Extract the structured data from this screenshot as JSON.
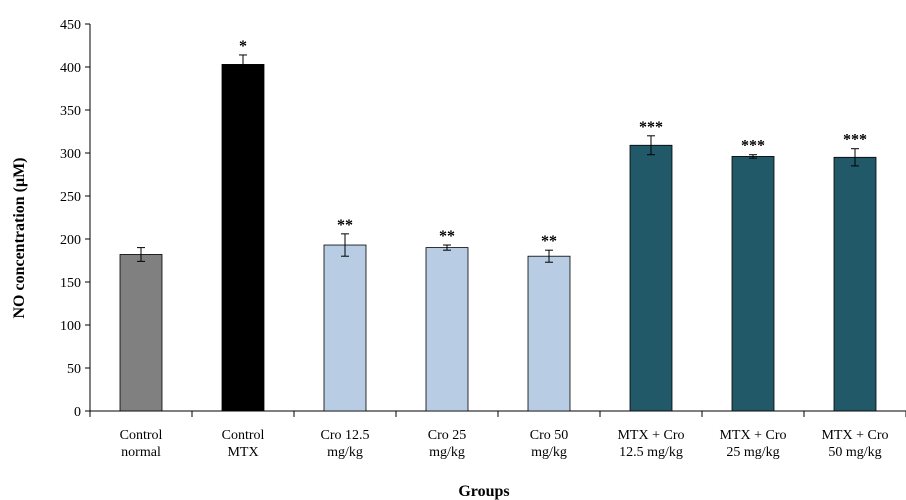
{
  "chart_data": {
    "type": "bar",
    "title": "",
    "xlabel": "Groups",
    "ylabel": "NO concentration (μM)",
    "ylim": [
      0,
      450
    ],
    "yticks": [
      0,
      50,
      100,
      150,
      200,
      250,
      300,
      350,
      400,
      450
    ],
    "grid": false,
    "legend": "none",
    "categories": [
      [
        "Control",
        "normal"
      ],
      [
        "Control",
        "MTX"
      ],
      [
        "Cro 12.5",
        "mg/kg"
      ],
      [
        "Cro 25",
        "mg/kg"
      ],
      [
        "Cro 50",
        "mg/kg"
      ],
      [
        "MTX + Cro",
        "12.5 mg/kg"
      ],
      [
        "MTX + Cro",
        "25 mg/kg"
      ],
      [
        "MTX + Cro",
        "50 mg/kg"
      ]
    ],
    "values": [
      182,
      403,
      193,
      190,
      180,
      309,
      296,
      295
    ],
    "errors": [
      8,
      11,
      13,
      3,
      7,
      11,
      2,
      10
    ],
    "significance": [
      "",
      "*",
      "**",
      "**",
      "**",
      "***",
      "***",
      "***"
    ],
    "colors": [
      "#808080",
      "#000000",
      "#b8cce4",
      "#b8cce4",
      "#b8cce4",
      "#215968",
      "#215968",
      "#215968"
    ]
  }
}
